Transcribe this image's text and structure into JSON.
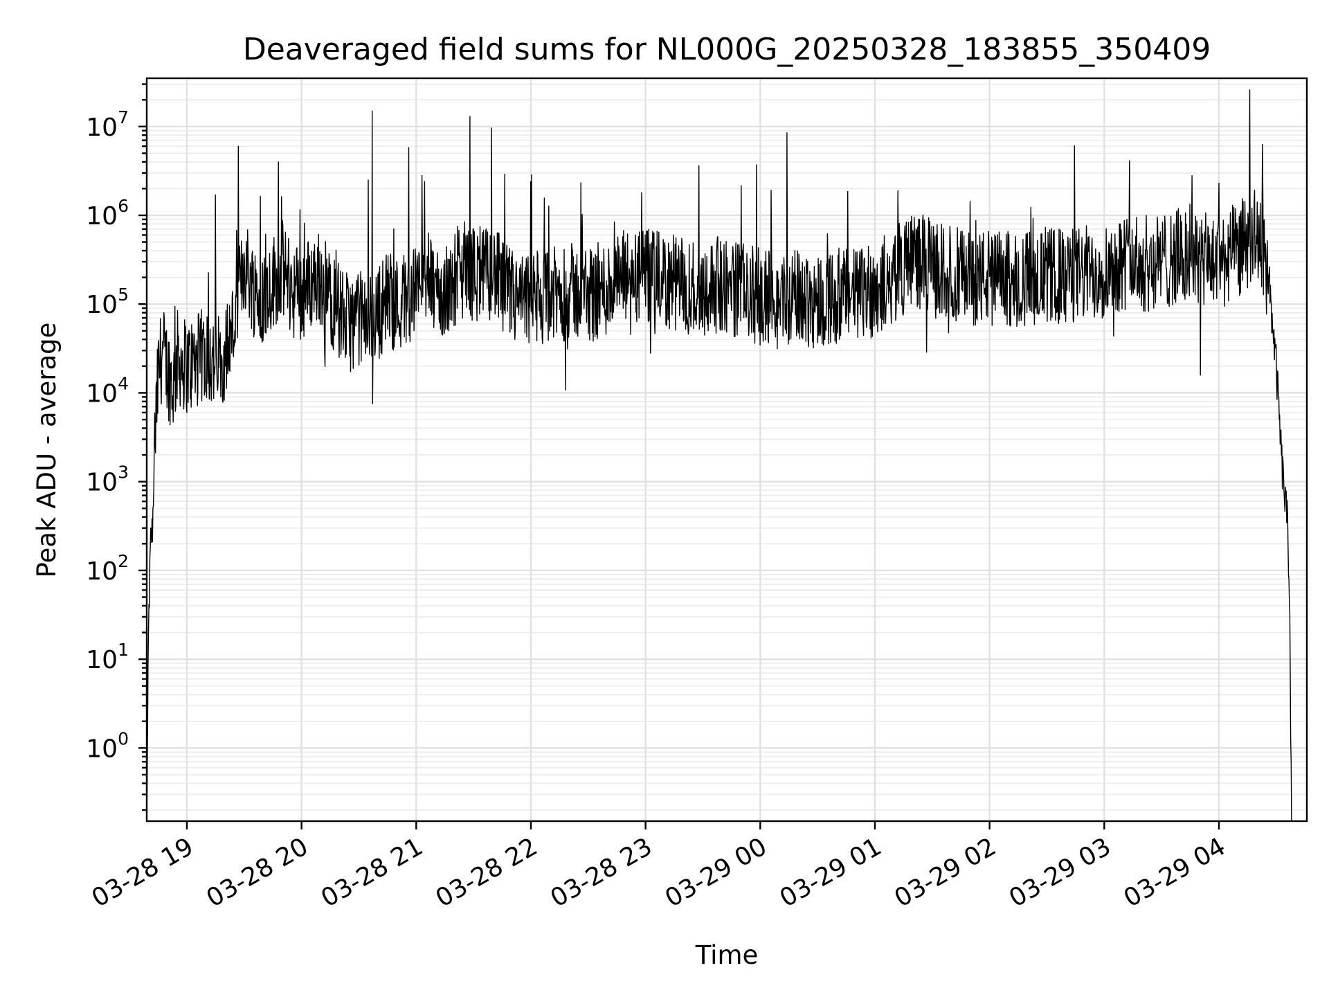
{
  "chart_data": {
    "type": "line",
    "title": "Deaveraged field sums for NL000G_20250328_183855_350409",
    "xlabel": "Time",
    "ylabel": "Peak ADU - average",
    "yscale": "log",
    "grid": true,
    "legend": "none",
    "line_color": "#000000",
    "xlim": [
      "2025-03-28 18:39",
      "2025-03-29 04:46"
    ],
    "ylim": [
      0.15,
      35000000
    ],
    "x_ticks": [
      {
        "value": "2025-03-28 19:00",
        "label": "03-28 19"
      },
      {
        "value": "2025-03-28 20:00",
        "label": "03-28 20"
      },
      {
        "value": "2025-03-28 21:00",
        "label": "03-28 21"
      },
      {
        "value": "2025-03-28 22:00",
        "label": "03-28 22"
      },
      {
        "value": "2025-03-28 23:00",
        "label": "03-28 23"
      },
      {
        "value": "2025-03-29 00:00",
        "label": "03-29 00"
      },
      {
        "value": "2025-03-29 01:00",
        "label": "03-29 01"
      },
      {
        "value": "2025-03-29 02:00",
        "label": "03-29 02"
      },
      {
        "value": "2025-03-29 03:00",
        "label": "03-29 03"
      },
      {
        "value": "2025-03-29 04:00",
        "label": "03-29 04"
      }
    ],
    "y_ticks": [
      {
        "value": 1,
        "base": "10",
        "exp": "0"
      },
      {
        "value": 10,
        "base": "10",
        "exp": "1"
      },
      {
        "value": 100,
        "base": "10",
        "exp": "2"
      },
      {
        "value": 1000,
        "base": "10",
        "exp": "3"
      },
      {
        "value": 10000,
        "base": "10",
        "exp": "4"
      },
      {
        "value": 100000,
        "base": "10",
        "exp": "5"
      },
      {
        "value": 1000000,
        "base": "10",
        "exp": "6"
      },
      {
        "value": 10000000,
        "base": "10",
        "exp": "7"
      }
    ],
    "series": [
      {
        "points": [
          [
            "2025-03-28 18:39",
            0.15
          ],
          [
            "2025-03-28 18:40",
            25
          ],
          [
            "2025-03-28 18:41",
            200
          ],
          [
            "2025-03-28 18:42",
            300
          ],
          [
            "2025-03-28 18:43",
            2000
          ],
          [
            "2025-03-28 18:45",
            15000
          ],
          [
            "2025-03-28 18:47",
            30000
          ],
          [
            "2025-03-28 18:50",
            18000
          ],
          [
            "2025-03-28 18:53",
            12000
          ],
          [
            "2025-03-28 18:55",
            25000
          ],
          [
            "2025-03-28 19:00",
            20000
          ],
          [
            "2025-03-28 19:05",
            22000
          ],
          [
            "2025-03-28 19:10",
            28000
          ],
          [
            "2025-03-28 19:15",
            20000
          ],
          [
            "2025-03-28 19:20",
            30000
          ],
          [
            "2025-03-28 19:25",
            60000
          ],
          [
            "2025-03-28 19:30",
            300000
          ],
          [
            "2025-03-28 19:35",
            150000
          ],
          [
            "2025-03-28 19:40",
            120000
          ],
          [
            "2025-03-28 19:45",
            180000
          ],
          [
            "2025-03-28 19:50",
            250000
          ],
          [
            "2025-03-28 19:55",
            150000
          ],
          [
            "2025-03-28 20:00",
            130000
          ],
          [
            "2025-03-28 20:05",
            180000
          ],
          [
            "2025-03-28 20:10",
            200000
          ],
          [
            "2025-03-28 20:15",
            120000
          ],
          [
            "2025-03-28 20:20",
            80000
          ],
          [
            "2025-03-28 20:25",
            60000
          ],
          [
            "2025-03-28 20:30",
            70000
          ],
          [
            "2025-03-28 20:35",
            60000
          ],
          [
            "2025-03-28 20:40",
            80000
          ],
          [
            "2025-03-28 20:45",
            120000
          ],
          [
            "2025-03-28 20:50",
            100000
          ],
          [
            "2025-03-28 20:55",
            120000
          ],
          [
            "2025-03-28 21:00",
            150000
          ],
          [
            "2025-03-28 21:05",
            200000
          ],
          [
            "2025-03-28 21:10",
            150000
          ],
          [
            "2025-03-28 21:15",
            120000
          ],
          [
            "2025-03-28 21:20",
            200000
          ],
          [
            "2025-03-28 21:25",
            250000
          ],
          [
            "2025-03-28 21:30",
            220000
          ],
          [
            "2025-03-28 21:35",
            200000
          ],
          [
            "2025-03-28 21:40",
            250000
          ],
          [
            "2025-03-28 21:45",
            150000
          ],
          [
            "2025-03-28 21:50",
            120000
          ],
          [
            "2025-03-28 21:55",
            100000
          ],
          [
            "2025-03-28 22:00",
            110000
          ],
          [
            "2025-03-28 22:10",
            120000
          ],
          [
            "2025-03-28 22:20",
            140000
          ],
          [
            "2025-03-28 22:30",
            130000
          ],
          [
            "2025-03-28 22:40",
            150000
          ],
          [
            "2025-03-28 22:50",
            200000
          ],
          [
            "2025-03-28 23:00",
            200000
          ],
          [
            "2025-03-28 23:10",
            180000
          ],
          [
            "2025-03-28 23:20",
            160000
          ],
          [
            "2025-03-28 23:30",
            150000
          ],
          [
            "2025-03-28 23:40",
            170000
          ],
          [
            "2025-03-28 23:50",
            140000
          ],
          [
            "2025-03-29 00:00",
            120000
          ],
          [
            "2025-03-29 00:10",
            110000
          ],
          [
            "2025-03-29 00:20",
            120000
          ],
          [
            "2025-03-29 00:30",
            110000
          ],
          [
            "2025-03-29 00:40",
            120000
          ],
          [
            "2025-03-29 00:50",
            130000
          ],
          [
            "2025-03-29 01:00",
            150000
          ],
          [
            "2025-03-29 01:10",
            200000
          ],
          [
            "2025-03-29 01:20",
            350000
          ],
          [
            "2025-03-29 01:30",
            250000
          ],
          [
            "2025-03-29 01:40",
            220000
          ],
          [
            "2025-03-29 01:50",
            200000
          ],
          [
            "2025-03-29 02:00",
            200000
          ],
          [
            "2025-03-29 02:10",
            190000
          ],
          [
            "2025-03-29 02:20",
            200000
          ],
          [
            "2025-03-29 02:30",
            210000
          ],
          [
            "2025-03-29 02:40",
            200000
          ],
          [
            "2025-03-29 02:50",
            220000
          ],
          [
            "2025-03-29 03:00",
            250000
          ],
          [
            "2025-03-29 03:10",
            300000
          ],
          [
            "2025-03-29 03:20",
            280000
          ],
          [
            "2025-03-29 03:30",
            300000
          ],
          [
            "2025-03-29 03:40",
            350000
          ],
          [
            "2025-03-29 03:50",
            300000
          ],
          [
            "2025-03-29 04:00",
            300000
          ],
          [
            "2025-03-29 04:10",
            400000
          ],
          [
            "2025-03-29 04:18",
            600000
          ],
          [
            "2025-03-29 04:22",
            500000
          ],
          [
            "2025-03-29 04:26",
            200000
          ],
          [
            "2025-03-29 04:30",
            20000
          ],
          [
            "2025-03-29 04:33",
            1500
          ],
          [
            "2025-03-29 04:36",
            300
          ],
          [
            "2025-03-29 04:37",
            50
          ],
          [
            "2025-03-29 04:38",
            0.15
          ]
        ],
        "spikes": [
          [
            "2025-03-28 19:15",
            1700000
          ],
          [
            "2025-03-28 19:48",
            4000000
          ],
          [
            "2025-03-28 20:37",
            15000000
          ],
          [
            "2025-03-28 20:56",
            5800000
          ],
          [
            "2025-03-28 21:28",
            13000000
          ],
          [
            "2025-03-28 22:00",
            2400000
          ],
          [
            "2025-03-28 22:58",
            1800000
          ],
          [
            "2025-03-28 23:58",
            3700000
          ],
          [
            "2025-03-29 00:14",
            8500000
          ],
          [
            "2025-03-29 03:46",
            2800000
          ],
          [
            "2025-03-29 04:00",
            2300000
          ]
        ]
      }
    ]
  }
}
